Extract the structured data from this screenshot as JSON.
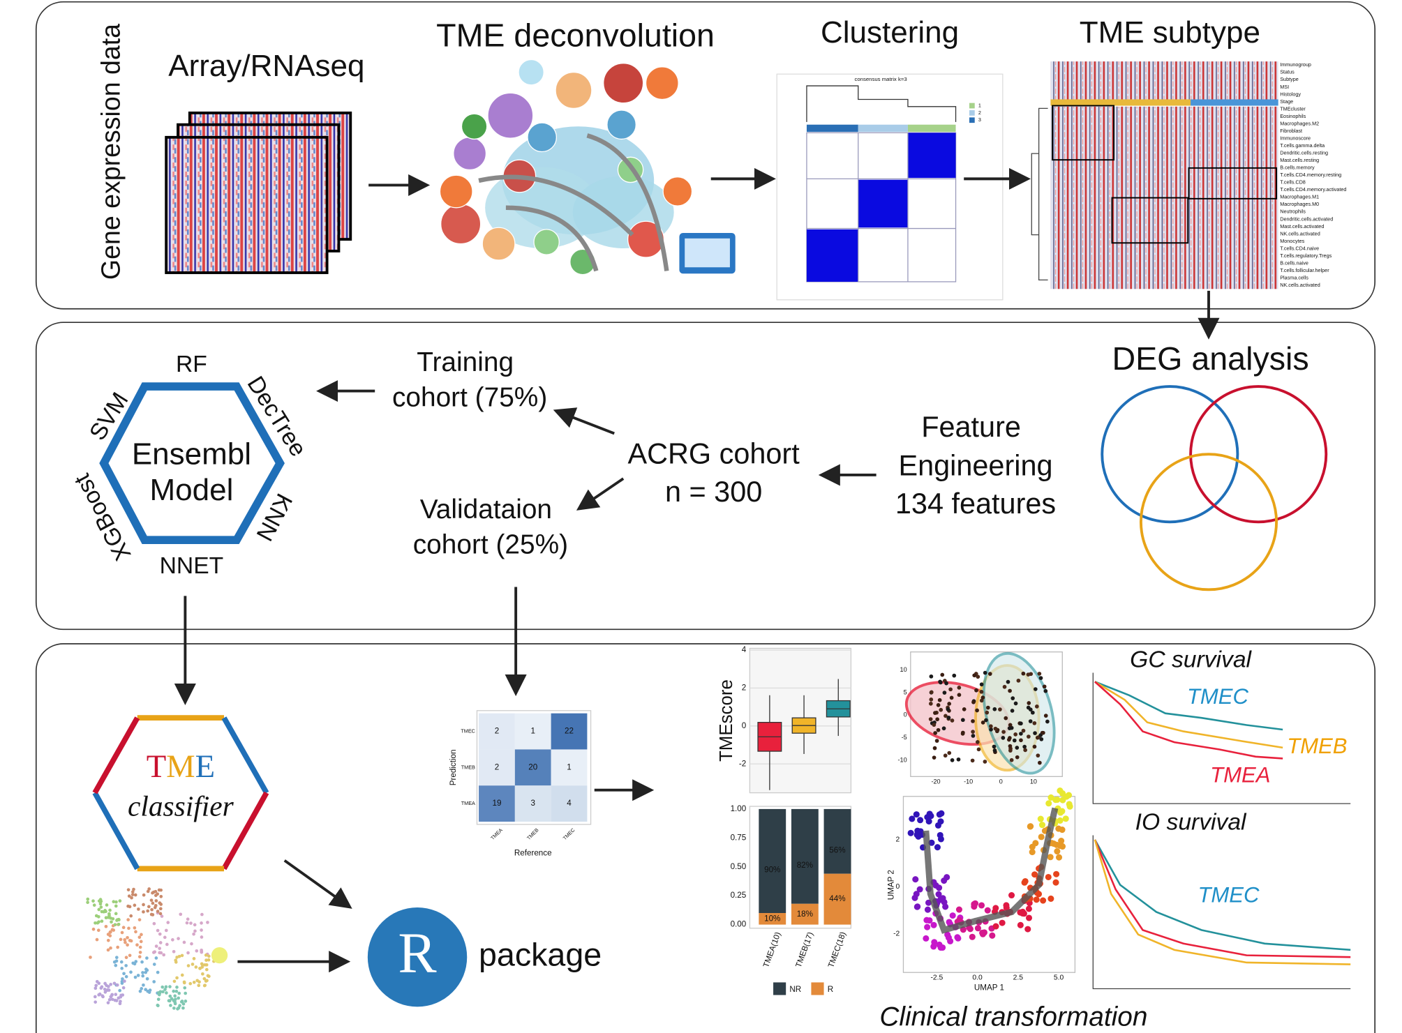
{
  "top": {
    "side_label": "Gene expression data",
    "steps": [
      "Array/RNAseq",
      "TME deconvolution",
      "Clustering",
      "TME subtype"
    ],
    "consensus_title": "consensus matrix k=3",
    "consensus_legend": [
      "1",
      "2",
      "3"
    ],
    "heatmap_labels": [
      "Immunogroup",
      "Status",
      "Subtype",
      "MSI",
      "Histology",
      "Stage",
      "TMEcluster",
      "Eosinophils",
      "Macrophages.M2",
      "Fibroblast",
      "Immunoscore",
      "T.cells.gamma.delta",
      "Dendritic.cells.resting",
      "Mast.cells.resting",
      "B.cells.memory",
      "T.cells.CD4.memory.resting",
      "T.cells.CD8",
      "T.cells.CD4.memory.activated",
      "Macrophages.M1",
      "Macrophages.M0",
      "Neutrophils",
      "Dendritic.cells.activated",
      "Mast.cells.activated",
      "NK.cells.activated",
      "Monocytes",
      "T.cells.CD4.naive",
      "T.cells.regulatory.Tregs",
      "B.cells.naive",
      "T.cells.follicular.helper",
      "Plasma.cells",
      "NK.cells.activated"
    ]
  },
  "middle": {
    "deg": "DEG analysis",
    "feature": [
      "Feature",
      "Engineering",
      "134 features"
    ],
    "cohort": [
      "ACRG cohort",
      "n = 300"
    ],
    "training": [
      "Training",
      "cohort (75%)"
    ],
    "validation": [
      "Validataion",
      "cohort (25%)"
    ],
    "model": [
      "Ensembl",
      "Model"
    ],
    "algorithms": [
      "RF",
      "DecTree",
      "KNN",
      "NNET",
      "XGBoost",
      "SVM"
    ]
  },
  "bottom": {
    "classifier": {
      "letters": [
        "T",
        "M",
        "E"
      ],
      "word": "classifier"
    },
    "package": {
      "logo": "R",
      "label": "package"
    },
    "confusion": {
      "y_label": "Prediction",
      "x_label": "Reference",
      "rows": [
        "TMEC",
        "TMEB",
        "TMEA"
      ],
      "cols": [
        "TMEA",
        "TMEB",
        "TMEC"
      ],
      "cells": [
        [
          2,
          1,
          22
        ],
        [
          2,
          20,
          1
        ],
        [
          19,
          3,
          4
        ]
      ]
    },
    "boxplot": {
      "y_label": "TMEscore",
      "yticks": [
        "4",
        "2",
        "0",
        "-2"
      ]
    },
    "bars": {
      "yticks": [
        "1.00",
        "0.75",
        "0.50",
        "0.25",
        "0.00"
      ],
      "categories": [
        "TMEA(10)",
        "TMEB(17)",
        "TMEC(18)"
      ],
      "nr_labels": [
        "90%",
        "82%",
        "56%"
      ],
      "r_labels": [
        "10%",
        "18%",
        "44%"
      ],
      "legend": [
        "NR",
        "R"
      ]
    },
    "pca": {
      "yticks": [
        "10",
        "5",
        "0",
        "-5",
        "-10"
      ],
      "xticks": [
        "-20",
        "-10",
        "0",
        "10"
      ]
    },
    "umap": {
      "y_label": "UMAP 2",
      "x_label": "UMAP 1",
      "yticks": [
        "2",
        "0",
        "-2"
      ],
      "xticks": [
        "-2.5",
        "0.0",
        "2.5",
        "5.0"
      ]
    },
    "gc_survival": {
      "title": "GC survival",
      "labels": [
        "TMEC",
        "TMEB",
        "TMEA"
      ]
    },
    "io_survival": {
      "title": "IO survival",
      "labels": [
        "TMEC"
      ]
    },
    "caption": "Clinical transformation"
  }
}
